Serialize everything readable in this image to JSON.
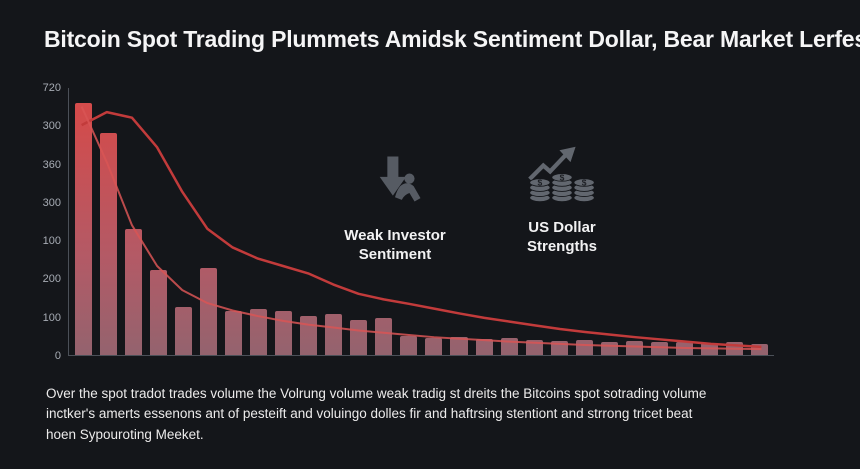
{
  "title": "Bitcoin Spot Trading Plummets Amidsk Sentiment Dollar, Bear Market Lerfes",
  "colors": {
    "background": "#14161a",
    "bar_top": "#d84848",
    "bar_bottom": "#82626d",
    "line": "#c23b3b",
    "line2": "#d95555",
    "axis": "#a7acb4",
    "icon_gray": "#5b6069",
    "title_text": "#f5f5f6",
    "caption_text": "#ecebeb"
  },
  "icons": {
    "dollar_glyph": "$"
  },
  "annotations": [
    {
      "icon": "weak-investor-icon",
      "label_line1": "Weak Investor",
      "label_line2": "Sentiment"
    },
    {
      "icon": "us-dollar-icon",
      "label_line1": "US Dollar",
      "label_line2": "Strengths"
    }
  ],
  "caption": {
    "lines": [
      "Over the spot tradot trades volume the Volrung volume weak tradig st dreits the Bitcoins spot sotrading volume",
      "inctker's amerts essenons ant of pesteift and voluingo dolles fir and haftrsing stentiont and strrong tricet beat",
      "hoen Sypouroting Meeket."
    ]
  },
  "chart_data": {
    "type": "bar",
    "title": "Bitcoin Spot Trading Plummets Amidsk Sentiment Dollar, Bear Market Lerfes",
    "xlabel": "",
    "ylabel": "",
    "ylim": [
      0,
      720
    ],
    "grid": false,
    "legend": "none",
    "y_tick_labels": [
      "720",
      "300",
      "360",
      "300",
      "100",
      "200",
      "100",
      "0"
    ],
    "values": [
      680,
      600,
      340,
      230,
      130,
      235,
      120,
      125,
      120,
      105,
      110,
      95,
      100,
      50,
      45,
      48,
      42,
      45,
      40,
      38,
      40,
      35,
      38,
      34,
      36,
      32,
      34,
      30
    ],
    "series": [
      {
        "name": "trend-line-1",
        "type": "line",
        "values": [
          620,
          655,
          640,
          560,
          440,
          340,
          290,
          260,
          240,
          220,
          190,
          165,
          150,
          138,
          125,
          112,
          100,
          90,
          80,
          70,
          62,
          55,
          48,
          42,
          36,
          30,
          26,
          22
        ]
      },
      {
        "name": "trend-line-2",
        "type": "line",
        "values": [
          670,
          520,
          350,
          240,
          175,
          140,
          120,
          105,
          92,
          82,
          74,
          66,
          60,
          54,
          48,
          44,
          40,
          36,
          33,
          30,
          27,
          25,
          23,
          21,
          19,
          18,
          17,
          16
        ]
      }
    ]
  }
}
